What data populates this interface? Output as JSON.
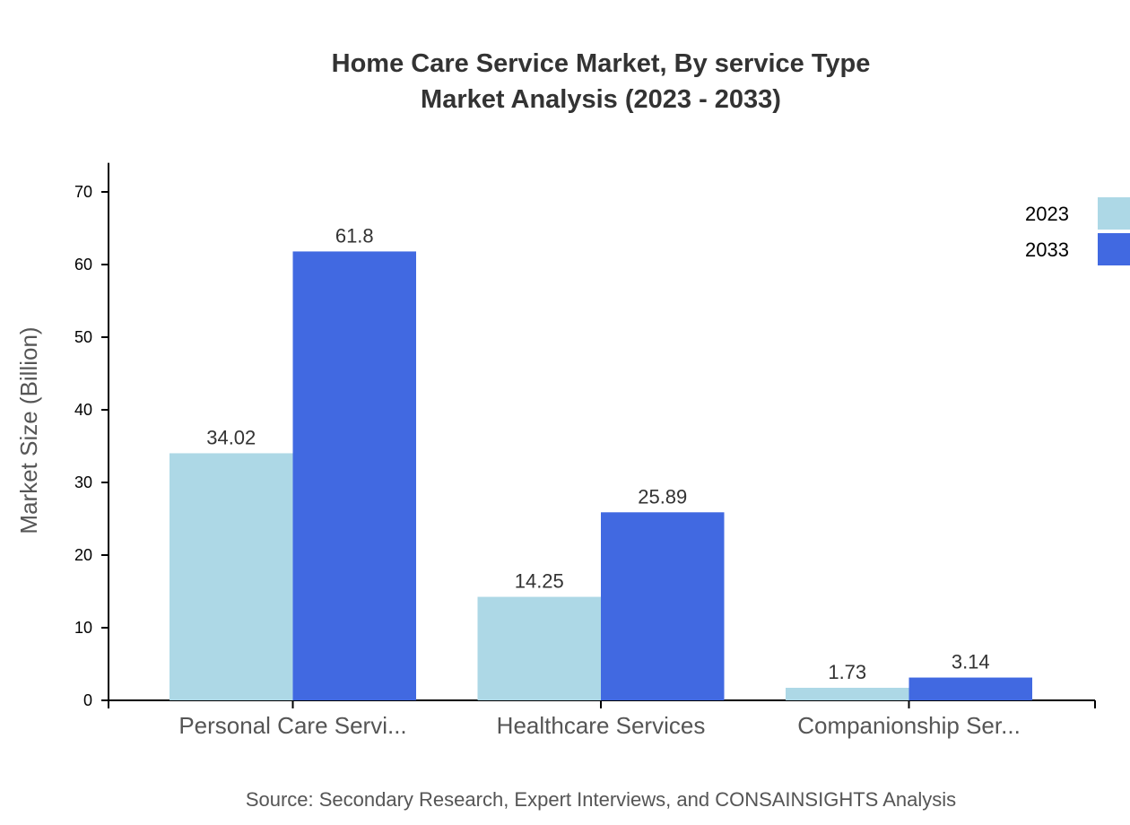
{
  "chart_data": {
    "type": "bar",
    "title": "Home Care Service Market, By service Type",
    "subtitle": "Market Analysis (2023 - 2033)",
    "xlabel": "",
    "ylabel": "Market Size (Billion)",
    "categories": [
      "Personal Care Servi...",
      "Healthcare Services",
      "Companionship Ser..."
    ],
    "series": [
      {
        "name": "2023",
        "color": "#add8e6",
        "values": [
          34.02,
          14.25,
          1.73
        ]
      },
      {
        "name": "2033",
        "color": "#4169e1",
        "values": [
          61.8,
          25.89,
          3.14
        ]
      }
    ],
    "ylim": [
      0,
      74
    ],
    "yticks": [
      0,
      10,
      20,
      30,
      40,
      50,
      60,
      70
    ],
    "grid": false,
    "legend_placement": "top-right",
    "source": "Source: Secondary Research, Expert Interviews, and CONSAINSIGHTS Analysis"
  }
}
